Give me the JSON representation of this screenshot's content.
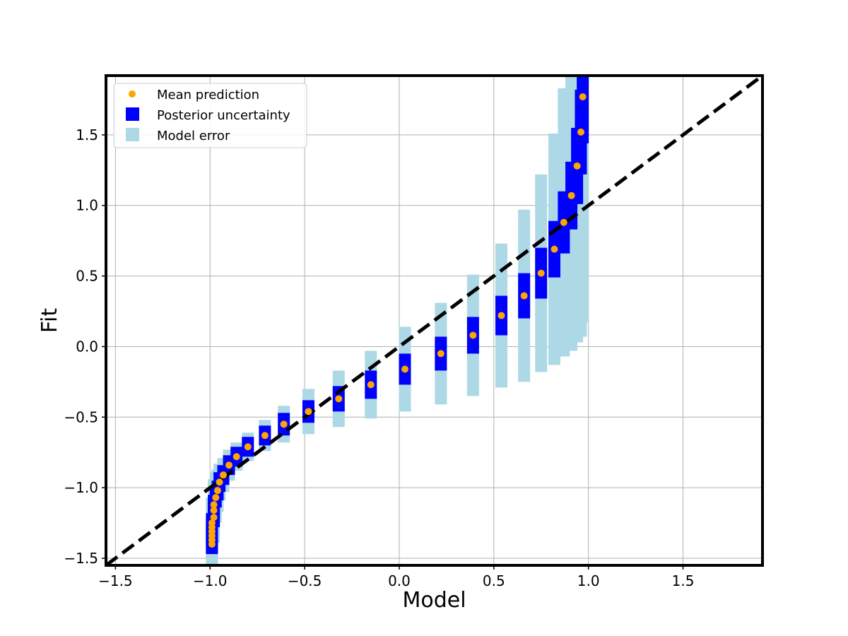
{
  "chart_data": {
    "type": "scatter",
    "title": "",
    "xlabel": "Model",
    "ylabel": "Fit",
    "xlim": [
      -1.55,
      1.92
    ],
    "ylim": [
      -1.55,
      1.92
    ],
    "xticks": [
      -1.5,
      -1.0,
      -0.5,
      0.0,
      0.5,
      1.0,
      1.5
    ],
    "yticks": [
      -1.5,
      -1.0,
      -0.5,
      0.0,
      0.5,
      1.0,
      1.5
    ],
    "xtick_labels": [
      "−1.5",
      "−1.0",
      "−0.5",
      "0.0",
      "0.5",
      "1.0",
      "1.5"
    ],
    "ytick_labels": [
      "−1.5",
      "−1.0",
      "−0.5",
      "0.0",
      "0.5",
      "1.0",
      "1.5"
    ],
    "grid": true,
    "legend_position": "top-left",
    "reference_line": {
      "style": "dashed",
      "color": "#000000",
      "from": [
        -1.55,
        -1.55
      ],
      "to": [
        1.92,
        1.92
      ]
    },
    "legend": [
      {
        "label": "Mean prediction",
        "marker": "dot",
        "color": "#ffa500"
      },
      {
        "label": "Posterior uncertainty",
        "marker": "square",
        "color": "#0000ff"
      },
      {
        "label": "Model error",
        "marker": "square",
        "color": "#add8e6"
      }
    ],
    "colors": {
      "mean": "#ffa500",
      "posterior": "#0000ff",
      "model_error": "#add8e6",
      "grid": "#b0b0b0"
    },
    "series": [
      {
        "name": "Mean prediction",
        "points": [
          [
            -0.99,
            -1.4
          ],
          [
            -0.99,
            -1.37
          ],
          [
            -0.99,
            -1.34
          ],
          [
            -0.99,
            -1.31
          ],
          [
            -0.99,
            -1.28
          ],
          [
            -0.99,
            -1.25
          ],
          [
            -0.98,
            -1.21
          ],
          [
            -0.98,
            -1.16
          ],
          [
            -0.98,
            -1.12
          ],
          [
            -0.97,
            -1.07
          ],
          [
            -0.96,
            -1.02
          ],
          [
            -0.95,
            -0.96
          ],
          [
            -0.93,
            -0.91
          ],
          [
            -0.9,
            -0.84
          ],
          [
            -0.86,
            -0.78
          ],
          [
            -0.8,
            -0.71
          ],
          [
            -0.71,
            -0.63
          ],
          [
            -0.61,
            -0.55
          ],
          [
            -0.48,
            -0.46
          ],
          [
            -0.32,
            -0.37
          ],
          [
            -0.15,
            -0.27
          ],
          [
            0.03,
            -0.16
          ],
          [
            0.22,
            -0.05
          ],
          [
            0.39,
            0.08
          ],
          [
            0.54,
            0.22
          ],
          [
            0.66,
            0.36
          ],
          [
            0.75,
            0.52
          ],
          [
            0.82,
            0.69
          ],
          [
            0.87,
            0.88
          ],
          [
            0.91,
            1.07
          ],
          [
            0.94,
            1.28
          ],
          [
            0.96,
            1.52
          ],
          [
            0.97,
            1.77
          ]
        ],
        "posterior_half_width": [
          0.07,
          0.07,
          0.07,
          0.07,
          0.07,
          0.07,
          0.07,
          0.07,
          0.07,
          0.07,
          0.07,
          0.07,
          0.07,
          0.07,
          0.07,
          0.07,
          0.07,
          0.08,
          0.08,
          0.09,
          0.1,
          0.11,
          0.12,
          0.13,
          0.14,
          0.16,
          0.18,
          0.2,
          0.22,
          0.24,
          0.27,
          0.3,
          0.33
        ],
        "model_error_half_width": [
          0.15,
          0.16,
          0.16,
          0.17,
          0.17,
          0.18,
          0.18,
          0.18,
          0.18,
          0.18,
          0.15,
          0.13,
          0.12,
          0.11,
          0.1,
          0.1,
          0.11,
          0.13,
          0.16,
          0.2,
          0.24,
          0.3,
          0.36,
          0.43,
          0.51,
          0.61,
          0.7,
          0.82,
          0.95,
          1.1,
          1.25,
          1.45,
          1.6
        ]
      }
    ]
  }
}
